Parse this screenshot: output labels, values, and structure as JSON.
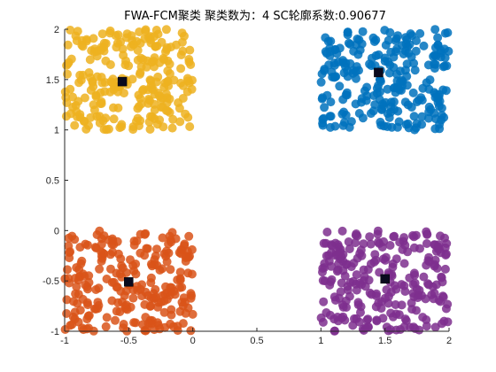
{
  "chart_data": {
    "type": "scatter",
    "title": "FWA-FCM聚类  聚类数为：4  SC轮廓系数:0.90677",
    "xlabel": "",
    "ylabel": "",
    "xlim": [
      -1,
      2
    ],
    "ylim": [
      -1,
      2
    ],
    "x_ticks": [
      "-1",
      "-0.5",
      "0",
      "0.5",
      "1",
      "1.5",
      "2"
    ],
    "y_ticks": [
      "-1",
      "-0.5",
      "0",
      "0.5",
      "1",
      "1.5",
      "2"
    ],
    "x_tick_values": [
      -1,
      -0.5,
      0,
      0.5,
      1,
      1.5,
      2
    ],
    "y_tick_values": [
      -1,
      -0.5,
      0,
      0.5,
      1,
      1.5,
      2
    ],
    "grid": false,
    "box": false,
    "points_per_cluster": 250,
    "marker": "filled-circle",
    "center_marker": "filled-square",
    "clusters": [
      {
        "color": "#edb120",
        "x_range": [
          -1,
          0
        ],
        "y_range": [
          1,
          2
        ],
        "center": [
          -0.55,
          1.48
        ]
      },
      {
        "color": "#0072bd",
        "x_range": [
          1,
          2
        ],
        "y_range": [
          1,
          2
        ],
        "center": [
          1.45,
          1.57
        ]
      },
      {
        "color": "#d95319",
        "x_range": [
          -1,
          0
        ],
        "y_range": [
          -1,
          0
        ],
        "center": [
          -0.5,
          -0.51
        ]
      },
      {
        "color": "#7e2f8e",
        "x_range": [
          1,
          2
        ],
        "y_range": [
          -1,
          0
        ],
        "center": [
          1.5,
          -0.48
        ]
      }
    ]
  }
}
